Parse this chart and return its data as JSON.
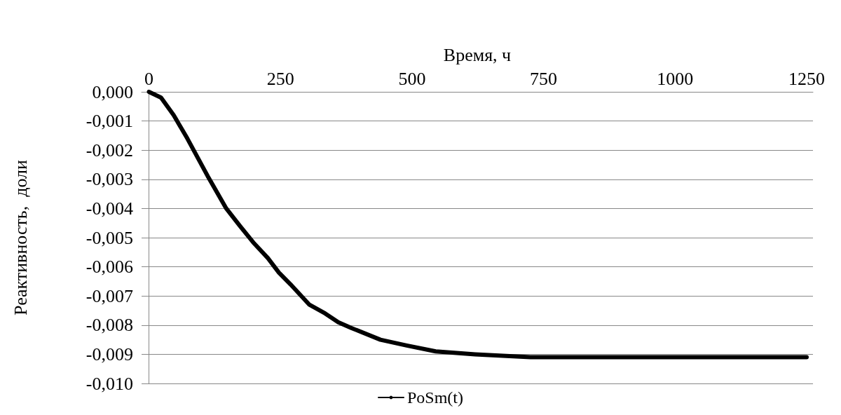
{
  "chart_data": {
    "type": "line",
    "xlabel": "Время, ч",
    "ylabel": "Реактивность,  доли",
    "xlim": [
      -14,
      1262
    ],
    "xticks": [
      0,
      250,
      500,
      750,
      1000,
      1250
    ],
    "ylim": [
      -0.01,
      0
    ],
    "yticks": [
      {
        "value": 0,
        "label": "0,000"
      },
      {
        "value": -0.001,
        "label": "-0,001"
      },
      {
        "value": -0.002,
        "label": "-0,002"
      },
      {
        "value": -0.003,
        "label": "-0,003"
      },
      {
        "value": -0.004,
        "label": "-0,004"
      },
      {
        "value": -0.005,
        "label": "-0,005"
      },
      {
        "value": -0.006,
        "label": "-0,006"
      },
      {
        "value": -0.007,
        "label": "-0,007"
      },
      {
        "value": -0.008,
        "label": "-0,008"
      },
      {
        "value": -0.009,
        "label": "-0,009"
      },
      {
        "value": -0.01,
        "label": "-0,010"
      }
    ],
    "grid": "y",
    "legend": "bottom",
    "marker": "none",
    "line_style": "solid",
    "series": [
      {
        "name": "PoSm(t)",
        "color": "#000000",
        "x": [
          0,
          23,
          47,
          73,
          112,
          147,
          173,
          200,
          226,
          247,
          269,
          305,
          335,
          360,
          385,
          440,
          490,
          545,
          620,
          725,
          850,
          1000,
          1250
        ],
        "values": [
          0,
          -0.0002,
          -0.0008,
          -0.0016,
          -0.0029,
          -0.004,
          -0.0046,
          -0.0052,
          -0.0057,
          -0.0062,
          -0.0066,
          -0.0073,
          -0.0076,
          -0.0079,
          -0.0081,
          -0.0085,
          -0.0087,
          -0.0089,
          -0.009,
          -0.0091,
          -0.0091,
          -0.0091,
          -0.0091
        ]
      }
    ]
  }
}
